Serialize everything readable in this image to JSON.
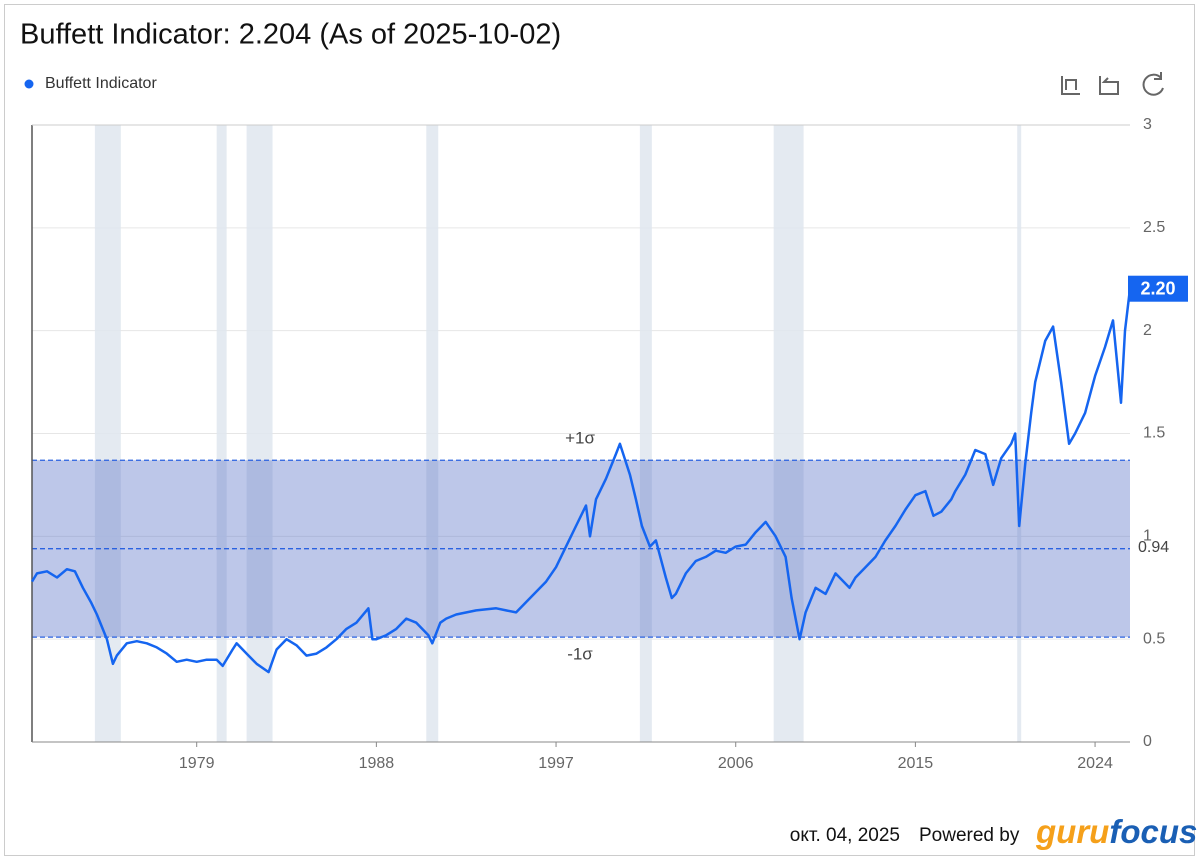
{
  "chart_data": {
    "type": "line",
    "title": "Buffett Indicator: 2.204 (As of 2025-10-02)",
    "x": [
      1970.75,
      1971.0,
      1971.5,
      1972.0,
      1972.5,
      1972.9,
      1973.3,
      1973.7,
      1974.0,
      1974.5,
      1974.8,
      1975.0,
      1975.5,
      1976.0,
      1976.5,
      1977.0,
      1977.5,
      1978.0,
      1978.5,
      1979.0,
      1979.5,
      1980.0,
      1980.3,
      1980.8,
      1981.0,
      1981.5,
      1982.0,
      1982.6,
      1983.0,
      1983.5,
      1984.0,
      1984.5,
      1985.0,
      1985.5,
      1986.0,
      1986.5,
      1987.0,
      1987.6,
      1987.8,
      1988.0,
      1988.5,
      1989.0,
      1989.5,
      1990.0,
      1990.6,
      1990.8,
      1991.2,
      1991.5,
      1992.0,
      1993.0,
      1994.0,
      1994.5,
      1995.0,
      1995.5,
      1996.0,
      1996.5,
      1997.0,
      1997.5,
      1998.0,
      1998.5,
      1998.7,
      1999.0,
      1999.5,
      2000.0,
      2000.2,
      2000.7,
      2001.0,
      2001.3,
      2001.7,
      2002.0,
      2002.5,
      2002.8,
      2003.0,
      2003.5,
      2004.0,
      2004.5,
      2005.0,
      2005.5,
      2006.0,
      2006.5,
      2007.0,
      2007.5,
      2008.0,
      2008.5,
      2008.8,
      2009.2,
      2009.5,
      2010.0,
      2010.5,
      2011.0,
      2011.7,
      2012.0,
      2012.5,
      2013.0,
      2013.5,
      2014.0,
      2014.5,
      2015.0,
      2015.5,
      2015.9,
      2016.3,
      2016.8,
      2017.0,
      2017.5,
      2018.0,
      2018.5,
      2018.9,
      2019.3,
      2019.8,
      2020.0,
      2020.2,
      2020.5,
      2020.8,
      2021.0,
      2021.5,
      2021.9,
      2022.3,
      2022.7,
      2023.0,
      2023.5,
      2024.0,
      2024.5,
      2024.9,
      2025.2,
      2025.3,
      2025.5,
      2025.75
    ],
    "series": [
      {
        "name": "Buffett Indicator",
        "color": "#1565f0",
        "values": [
          0.78,
          0.82,
          0.83,
          0.8,
          0.84,
          0.83,
          0.75,
          0.68,
          0.62,
          0.5,
          0.38,
          0.42,
          0.48,
          0.49,
          0.48,
          0.46,
          0.43,
          0.39,
          0.4,
          0.39,
          0.4,
          0.4,
          0.37,
          0.45,
          0.48,
          0.43,
          0.38,
          0.34,
          0.45,
          0.5,
          0.47,
          0.42,
          0.43,
          0.46,
          0.5,
          0.55,
          0.58,
          0.65,
          0.5,
          0.5,
          0.52,
          0.55,
          0.6,
          0.58,
          0.52,
          0.48,
          0.58,
          0.6,
          0.62,
          0.64,
          0.65,
          0.64,
          0.63,
          0.68,
          0.73,
          0.78,
          0.85,
          0.95,
          1.05,
          1.15,
          1.0,
          1.18,
          1.28,
          1.4,
          1.45,
          1.3,
          1.18,
          1.05,
          0.95,
          0.98,
          0.8,
          0.7,
          0.72,
          0.82,
          0.88,
          0.9,
          0.93,
          0.92,
          0.95,
          0.96,
          1.02,
          1.07,
          1.0,
          0.9,
          0.7,
          0.5,
          0.63,
          0.75,
          0.72,
          0.82,
          0.75,
          0.8,
          0.85,
          0.9,
          0.98,
          1.05,
          1.13,
          1.2,
          1.22,
          1.1,
          1.12,
          1.18,
          1.22,
          1.3,
          1.42,
          1.4,
          1.25,
          1.38,
          1.45,
          1.5,
          1.05,
          1.35,
          1.6,
          1.75,
          1.95,
          2.02,
          1.75,
          1.45,
          1.5,
          1.6,
          1.78,
          1.92,
          2.05,
          1.75,
          1.65,
          2.0,
          2.204
        ]
      }
    ],
    "xlim": [
      1970.75,
      2025.75
    ],
    "xticks": [
      1979,
      1988,
      1997,
      2006,
      2015,
      2024
    ],
    "ylim": [
      0,
      3
    ],
    "yticks": [
      0,
      0.5,
      1,
      1.5,
      2,
      2.5,
      3
    ],
    "grid": true,
    "recessions": [
      [
        1973.9,
        1975.2
      ],
      [
        1980.0,
        1980.5
      ],
      [
        1981.5,
        1982.8
      ],
      [
        1990.5,
        1991.1
      ],
      [
        2001.2,
        2001.8
      ],
      [
        2007.9,
        2009.4
      ],
      [
        2020.1,
        2020.3
      ]
    ],
    "mean": {
      "value": 0.94,
      "label": "0.94"
    },
    "upper_band": {
      "value": 1.37,
      "label": "+1σ"
    },
    "lower_band": {
      "value": 0.51,
      "label": "-1σ"
    },
    "current": {
      "value": 2.204,
      "label": "2.20"
    },
    "date_label": "окт. 04, 2025",
    "powered_by": "Powered by",
    "logo": [
      "guru",
      "focus"
    ]
  }
}
